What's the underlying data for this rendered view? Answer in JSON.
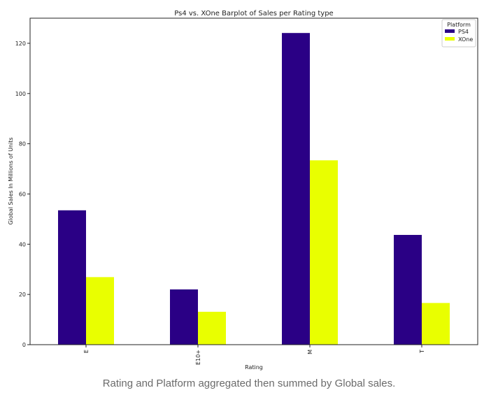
{
  "caption": "Rating and Platform aggregated then summed by Global sales.",
  "chart_data": {
    "type": "bar",
    "title": "Ps4 vs. XOne Barplot of Sales per Rating type",
    "xlabel": "Rating",
    "ylabel": "Global Sales  In Millions of Units",
    "categories": [
      "E",
      "E10+",
      "M",
      "T"
    ],
    "series": [
      {
        "name": "PS4",
        "color": "#2a0085",
        "values": [
          53.5,
          22,
          124.1,
          43.7
        ]
      },
      {
        "name": "XOne",
        "color": "#e9ff00",
        "values": [
          26.9,
          13.1,
          73.4,
          16.6
        ]
      }
    ],
    "yticks": [
      0,
      20,
      40,
      60,
      80,
      100,
      120
    ],
    "ylim": [
      0,
      130
    ],
    "legend": {
      "title": "Platform",
      "position": "top-right"
    },
    "grid": false
  }
}
